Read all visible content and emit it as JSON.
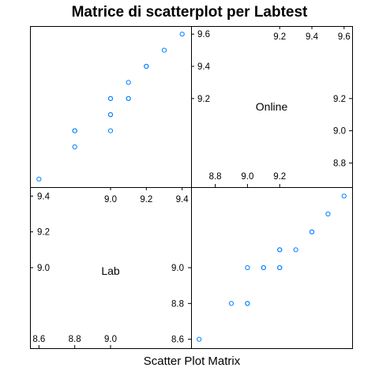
{
  "chart_data": {
    "type": "scatter",
    "title": "Matrice di scatterplot per Labtest",
    "xlabel": "Scatter Plot Matrix",
    "point_color": "#0080ff",
    "variables": [
      {
        "name": "Lab",
        "range": [
          8.55,
          9.45
        ],
        "ticks": [
          8.6,
          8.8,
          9.0,
          9.2,
          9.4
        ],
        "tick_labels": [
          "8.6",
          "8.8",
          "9.0",
          "9.2",
          "9.4"
        ]
      },
      {
        "name": "Online",
        "range": [
          8.65,
          9.65
        ],
        "ticks": [
          8.8,
          9.0,
          9.2,
          9.4,
          9.6
        ],
        "tick_labels": [
          "8.8",
          "9.0",
          "9.2",
          "9.4",
          "9.6"
        ]
      }
    ],
    "observations": [
      {
        "Lab": 8.6,
        "Online": 8.7
      },
      {
        "Lab": 8.8,
        "Online": 8.9
      },
      {
        "Lab": 8.8,
        "Online": 9.0
      },
      {
        "Lab": 8.8,
        "Online": 9.0
      },
      {
        "Lab": 9.0,
        "Online": 9.0
      },
      {
        "Lab": 9.0,
        "Online": 9.1
      },
      {
        "Lab": 9.0,
        "Online": 9.1
      },
      {
        "Lab": 9.0,
        "Online": 9.2
      },
      {
        "Lab": 9.0,
        "Online": 9.2
      },
      {
        "Lab": 9.1,
        "Online": 9.2
      },
      {
        "Lab": 9.1,
        "Online": 9.2
      },
      {
        "Lab": 9.1,
        "Online": 9.3
      },
      {
        "Lab": 9.2,
        "Online": 9.4
      },
      {
        "Lab": 9.2,
        "Online": 9.4
      },
      {
        "Lab": 9.3,
        "Online": 9.5
      },
      {
        "Lab": 9.4,
        "Online": 9.6
      }
    ]
  }
}
